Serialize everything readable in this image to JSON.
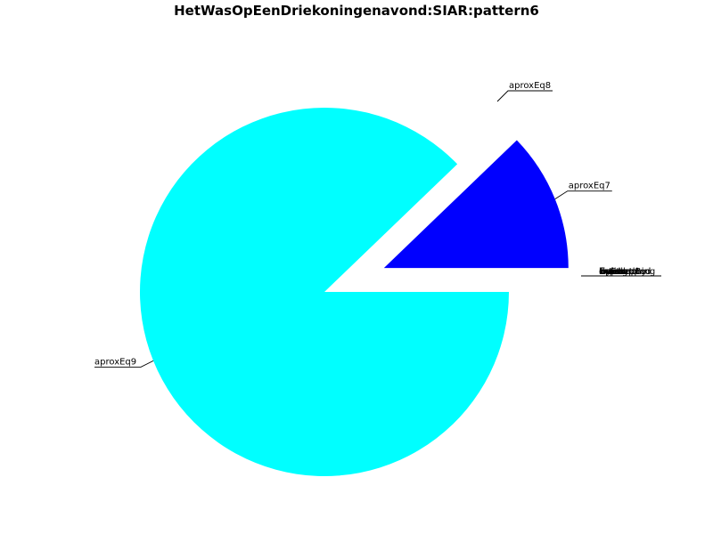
{
  "chart_data": {
    "type": "pie",
    "title": "HetWasOpEenDriekoningenavond:SIAR:pattern6",
    "slices": [
      {
        "label": "aproxEq7",
        "value": 0.122,
        "color": "#0000ff"
      },
      {
        "label": "aproxEq8",
        "value": 0.0,
        "color": "#0000ff"
      },
      {
        "label": "aproxEq9",
        "value": 0.878,
        "color": "#00ffff"
      }
    ],
    "zero_labels": [
      "before",
      "byStart",
      "overlapped",
      "during",
      "finishedBy",
      "equal",
      "meets",
      "approaching",
      "interrupted"
    ],
    "exploded": true
  }
}
